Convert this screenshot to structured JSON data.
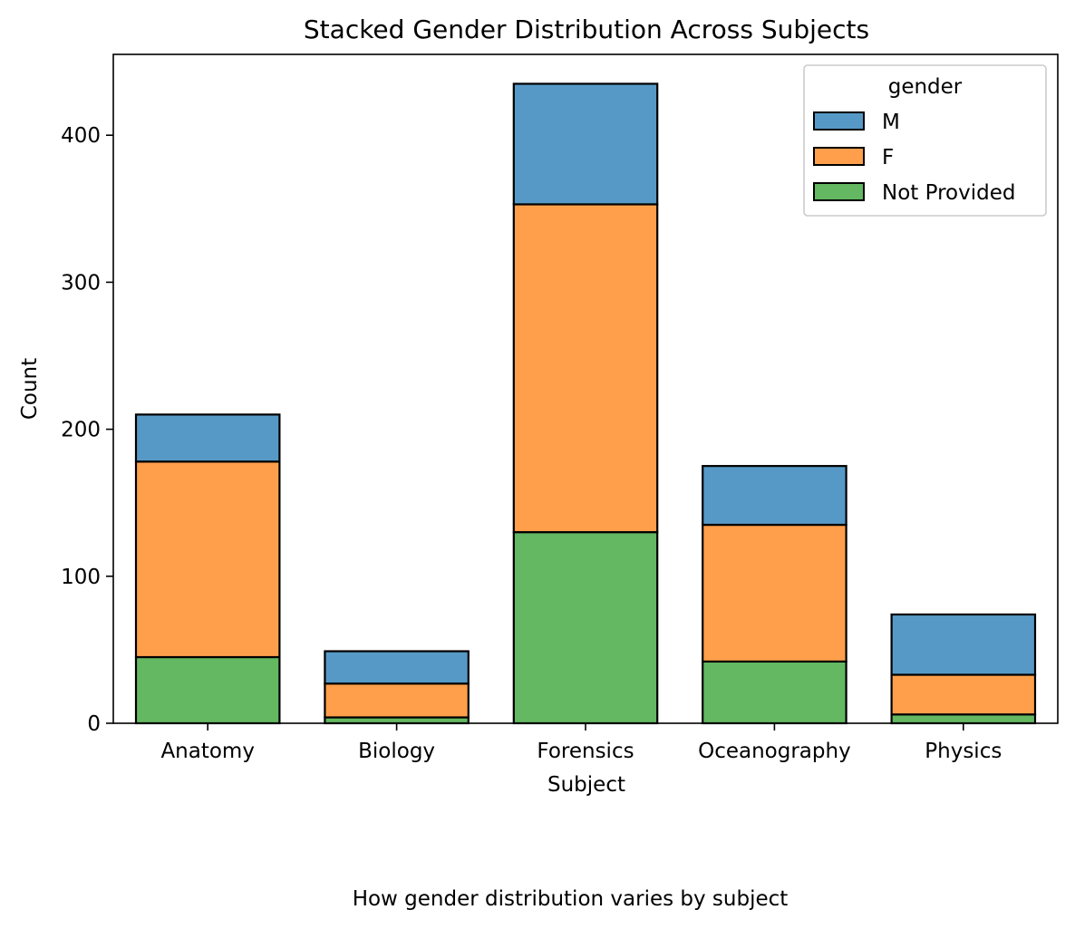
{
  "chart_data": {
    "type": "bar",
    "stacked": true,
    "title": "Stacked Gender Distribution Across Subjects",
    "xlabel": "Subject",
    "ylabel": "Count",
    "caption": "How gender distribution varies by subject",
    "categories": [
      "Anatomy",
      "Biology",
      "Forensics",
      "Oceanography",
      "Physics"
    ],
    "ylim": [
      0,
      455
    ],
    "yticks": [
      0,
      100,
      200,
      300,
      400
    ],
    "series": [
      {
        "name": "Not Provided",
        "color": "#63b861",
        "values": [
          45,
          4,
          130,
          42,
          6
        ]
      },
      {
        "name": "F",
        "color": "#ff9f4b",
        "values": [
          133,
          23,
          223,
          93,
          27
        ]
      },
      {
        "name": "M",
        "color": "#5799c6",
        "values": [
          32,
          22,
          82,
          40,
          41
        ]
      }
    ],
    "legend": {
      "title": "gender",
      "placement": "top-right",
      "entries": [
        "M",
        "F",
        "Not Provided"
      ]
    },
    "grid": false
  }
}
